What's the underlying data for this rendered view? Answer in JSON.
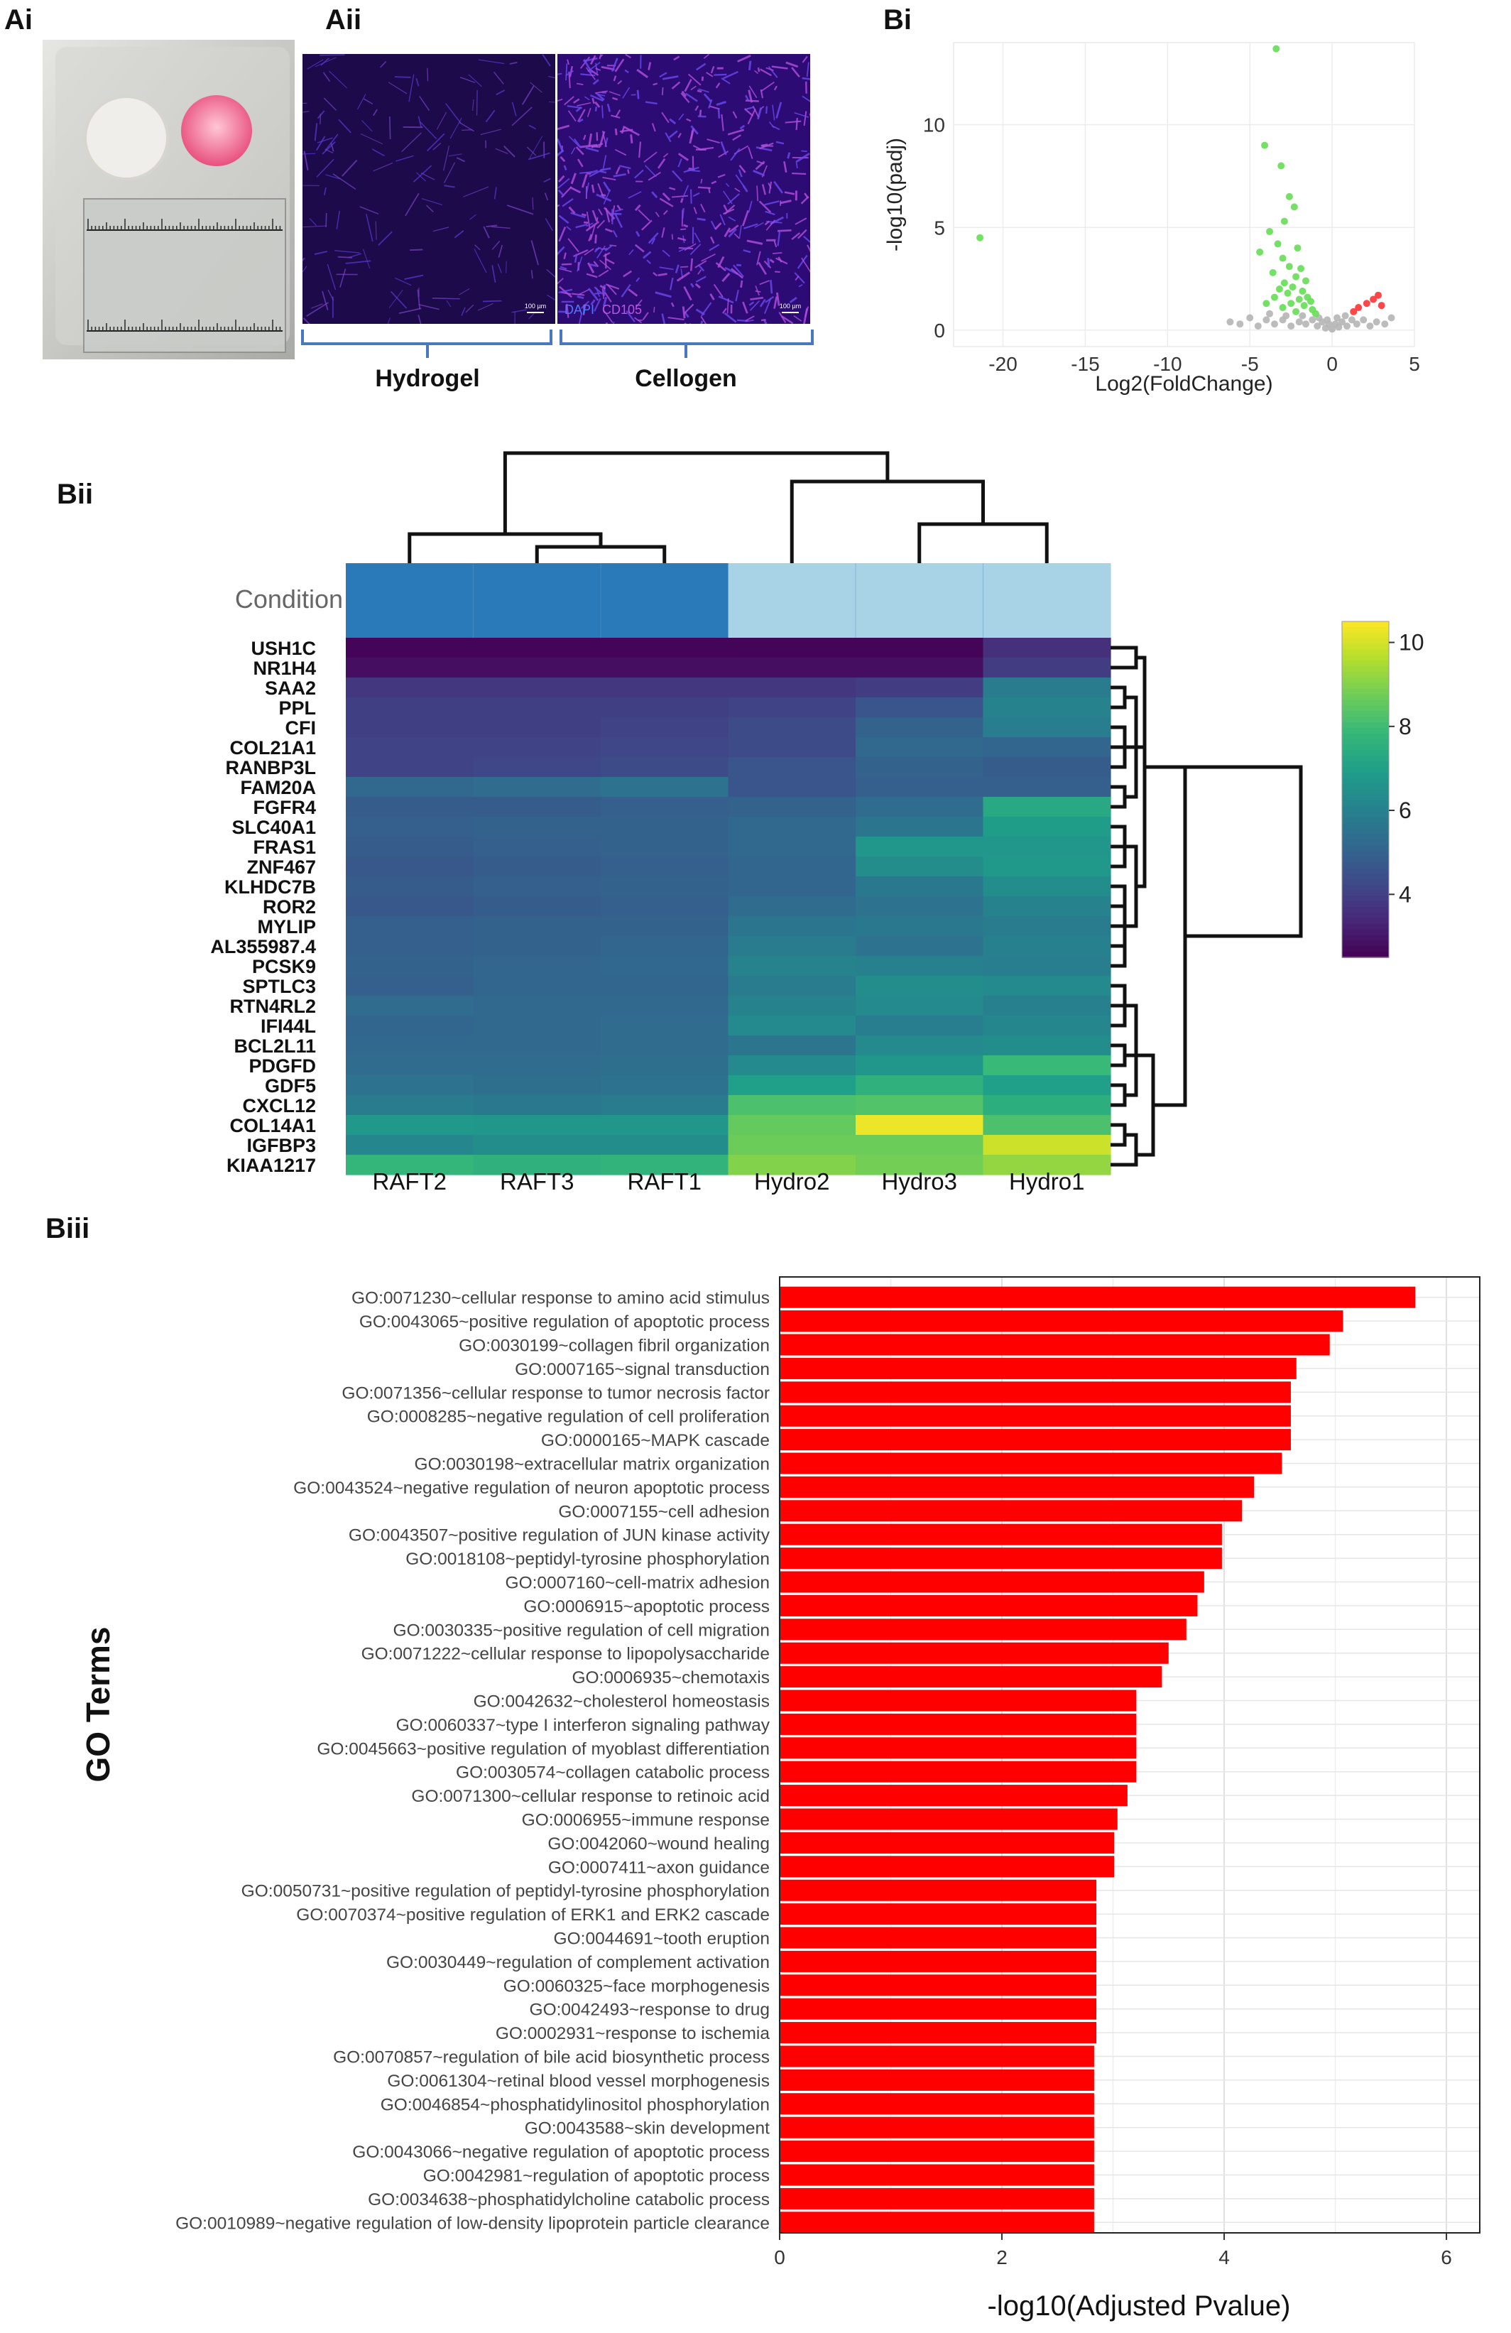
{
  "panels": {
    "ai": "Ai",
    "aii": "Aii",
    "bi": "Bi",
    "bii": "Bii",
    "biii": "Biii"
  },
  "aii": {
    "left_label": "Hydrogel",
    "right_label": "Cellogen",
    "stain_legend": {
      "dapi": "DAPI",
      "marker": "CD105"
    },
    "scale_text": "100 µm"
  },
  "colors": {
    "bar": "#ff0000",
    "volcano_up": "#ff3333",
    "volcano_down": "#66dd55",
    "volcano_ns": "#b5b5b5",
    "condition_raft": "#2a79b8",
    "condition_hydro": "#a8d3e7"
  },
  "chart_data": [
    {
      "id": "volcano",
      "type": "scatter",
      "xlabel": "Log2(FoldChange)",
      "ylabel": "-log10(padj)",
      "xlim": [
        -23,
        5
      ],
      "ylim": [
        -0.8,
        14
      ],
      "xticks": [
        "-20",
        "-15",
        "-10",
        "-5",
        "0",
        "5"
      ],
      "xtick_values": [
        -20,
        -15,
        -10,
        -5,
        0,
        5
      ],
      "yticks": [
        "0",
        "5",
        "10"
      ],
      "ytick_values": [
        0,
        5,
        10
      ],
      "grid": true,
      "series": [
        {
          "key": "up",
          "points": [
            [
              2.5,
              1.5
            ],
            [
              2.1,
              1.3
            ],
            [
              1.6,
              1.1
            ],
            [
              3.0,
              1.2
            ],
            [
              1.3,
              0.9
            ],
            [
              2.8,
              1.7
            ]
          ]
        },
        {
          "key": "down",
          "points": [
            [
              -21.4,
              4.5
            ],
            [
              -3.4,
              13.7
            ],
            [
              -4.1,
              9.0
            ],
            [
              -3.1,
              8.0
            ],
            [
              -2.6,
              6.5
            ],
            [
              -2.3,
              6.0
            ],
            [
              -2.9,
              5.3
            ],
            [
              -3.8,
              4.8
            ],
            [
              -4.4,
              3.8
            ],
            [
              -3.3,
              4.2
            ],
            [
              -2.1,
              4.0
            ],
            [
              -3.0,
              3.5
            ],
            [
              -2.6,
              3.1
            ],
            [
              -1.9,
              3.0
            ],
            [
              -3.6,
              2.8
            ],
            [
              -2.2,
              2.6
            ],
            [
              -1.6,
              2.4
            ],
            [
              -2.9,
              2.3
            ],
            [
              -2.4,
              2.1
            ],
            [
              -3.2,
              2.0
            ],
            [
              -1.8,
              1.9
            ],
            [
              -2.7,
              1.8
            ],
            [
              -1.5,
              1.6
            ],
            [
              -2.0,
              1.5
            ],
            [
              -3.5,
              1.6
            ],
            [
              -1.3,
              1.4
            ],
            [
              -2.5,
              1.3
            ],
            [
              -1.7,
              1.2
            ],
            [
              -3.0,
              1.1
            ],
            [
              -4.0,
              1.3
            ],
            [
              -1.2,
              1.0
            ],
            [
              -2.2,
              0.9
            ],
            [
              -1.0,
              0.8
            ]
          ]
        },
        {
          "key": "ns",
          "points": [
            [
              -6.2,
              0.4
            ],
            [
              -5.6,
              0.3
            ],
            [
              -5.0,
              0.6
            ],
            [
              -4.5,
              0.2
            ],
            [
              -4.0,
              0.5
            ],
            [
              -3.5,
              0.3
            ],
            [
              -3.0,
              0.5
            ],
            [
              -2.5,
              0.2
            ],
            [
              -2.0,
              0.4
            ],
            [
              -1.6,
              0.3
            ],
            [
              -1.2,
              0.5
            ],
            [
              -0.9,
              0.2
            ],
            [
              -0.6,
              0.4
            ],
            [
              -0.4,
              0.1
            ],
            [
              -0.2,
              0.3
            ],
            [
              0.0,
              0.05
            ],
            [
              0.2,
              0.3
            ],
            [
              0.4,
              0.15
            ],
            [
              0.6,
              0.4
            ],
            [
              0.9,
              0.2
            ],
            [
              1.2,
              0.5
            ],
            [
              1.5,
              0.3
            ],
            [
              1.9,
              0.5
            ],
            [
              2.3,
              0.2
            ],
            [
              2.7,
              0.4
            ],
            [
              3.2,
              0.3
            ],
            [
              3.6,
              0.6
            ],
            [
              -1.8,
              0.7
            ],
            [
              -2.8,
              0.7
            ],
            [
              -0.8,
              0.6
            ],
            [
              0.8,
              0.7
            ],
            [
              -3.8,
              0.8
            ],
            [
              -0.3,
              0.5
            ],
            [
              0.3,
              0.6
            ]
          ]
        }
      ]
    },
    {
      "id": "heatmap",
      "type": "heatmap",
      "annotation_label": "Condition",
      "columns": [
        "RAFT2",
        "RAFT3",
        "RAFT1",
        "Hydro2",
        "Hydro3",
        "Hydro1"
      ],
      "column_condition": [
        "raft",
        "raft",
        "raft",
        "hydro",
        "hydro",
        "hydro"
      ],
      "rows": [
        "USH1C",
        "NR1H4",
        "SAA2",
        "PPL",
        "CFI",
        "COL21A1",
        "RANBP3L",
        "FAM20A",
        "FGFR4",
        "SLC40A1",
        "FRAS1",
        "ZNF467",
        "KLHDC7B",
        "ROR2",
        "MYLIP",
        "AL355987.4",
        "PCSK9",
        "SPTLC3",
        "RTN4RL2",
        "IFI44L",
        "BCL2L11",
        "PDGFD",
        "GDF5",
        "CXCL12",
        "COL14A1",
        "IGFBP3",
        "KIAA1217"
      ],
      "values": [
        [
          2.6,
          2.6,
          2.6,
          2.6,
          2.6,
          3.6
        ],
        [
          2.8,
          2.8,
          2.8,
          2.8,
          2.8,
          3.9
        ],
        [
          3.8,
          3.8,
          3.8,
          3.8,
          3.9,
          5.8
        ],
        [
          4.0,
          4.0,
          4.0,
          4.1,
          4.6,
          6.1
        ],
        [
          4.0,
          4.0,
          4.1,
          4.3,
          5.0,
          5.9
        ],
        [
          4.1,
          4.1,
          4.2,
          4.3,
          5.2,
          5.1
        ],
        [
          4.1,
          4.2,
          4.3,
          4.6,
          5.0,
          4.8
        ],
        [
          5.2,
          5.3,
          5.5,
          4.6,
          4.9,
          4.9
        ],
        [
          4.8,
          4.8,
          4.9,
          5.0,
          5.3,
          7.3
        ],
        [
          4.9,
          5.0,
          5.0,
          5.2,
          5.6,
          6.9
        ],
        [
          4.8,
          4.9,
          5.0,
          5.2,
          6.7,
          6.7
        ],
        [
          4.7,
          4.8,
          4.9,
          5.1,
          6.4,
          6.8
        ],
        [
          4.8,
          4.9,
          5.0,
          5.1,
          5.7,
          6.4
        ],
        [
          4.7,
          4.8,
          4.9,
          5.3,
          5.5,
          6.1
        ],
        [
          4.9,
          5.0,
          5.0,
          5.6,
          5.7,
          5.8
        ],
        [
          4.9,
          5.0,
          5.1,
          5.8,
          5.5,
          6.0
        ],
        [
          5.0,
          5.1,
          5.2,
          6.1,
          6.0,
          5.9
        ],
        [
          4.9,
          5.1,
          5.1,
          5.8,
          6.4,
          6.3
        ],
        [
          5.3,
          5.2,
          5.2,
          6.1,
          6.3,
          6.0
        ],
        [
          5.1,
          5.2,
          5.3,
          6.3,
          5.9,
          6.2
        ],
        [
          5.2,
          5.2,
          5.3,
          5.6,
          6.3,
          6.4
        ],
        [
          5.3,
          5.3,
          5.4,
          6.3,
          6.7,
          7.9
        ],
        [
          5.5,
          5.4,
          5.5,
          7.0,
          7.6,
          7.0
        ],
        [
          5.8,
          5.7,
          5.8,
          8.2,
          8.3,
          7.5
        ],
        [
          6.8,
          6.7,
          6.7,
          8.6,
          10.3,
          8.2
        ],
        [
          6.2,
          6.4,
          6.4,
          8.7,
          8.7,
          9.9
        ],
        [
          7.8,
          7.6,
          7.7,
          9.0,
          8.8,
          9.2
        ]
      ],
      "colorbar_ticks": [
        "10",
        "8",
        "6",
        "4"
      ],
      "colorbar_tick_values": [
        10,
        8,
        6,
        4
      ],
      "color_range": [
        2.5,
        10.5
      ],
      "colormap": "viridis"
    },
    {
      "id": "go_bar",
      "type": "bar",
      "orientation": "horizontal",
      "ylabel": "GO Terms",
      "xlabel": "-log10(Adjusted Pvalue)",
      "xlim": [
        0,
        6.3
      ],
      "xticks": [
        "0",
        "2",
        "4",
        "6"
      ],
      "xtick_values": [
        0,
        2,
        4,
        6
      ],
      "grid": true,
      "categories": [
        "GO:0071230~cellular response to amino acid stimulus",
        "GO:0043065~positive regulation of apoptotic process",
        "GO:0030199~collagen fibril organization",
        "GO:0007165~signal transduction",
        "GO:0071356~cellular response to tumor necrosis factor",
        "GO:0008285~negative regulation of cell proliferation",
        "GO:0000165~MAPK cascade",
        "GO:0030198~extracellular matrix organization",
        "GO:0043524~negative regulation of neuron apoptotic process",
        "GO:0007155~cell adhesion",
        "GO:0043507~positive regulation of JUN kinase activity",
        "GO:0018108~peptidyl-tyrosine phosphorylation",
        "GO:0007160~cell-matrix adhesion",
        "GO:0006915~apoptotic process",
        "GO:0030335~positive regulation of cell migration",
        "GO:0071222~cellular response to lipopolysaccharide",
        "GO:0006935~chemotaxis",
        "GO:0042632~cholesterol homeostasis",
        "GO:0060337~type I interferon signaling pathway",
        "GO:0045663~positive regulation of myoblast differentiation",
        "GO:0030574~collagen catabolic process",
        "GO:0071300~cellular response to retinoic acid",
        "GO:0006955~immune response",
        "GO:0042060~wound healing",
        "GO:0007411~axon guidance",
        "GO:0050731~positive regulation of peptidyl-tyrosine phosphorylation",
        "GO:0070374~positive regulation of ERK1 and ERK2 cascade",
        "GO:0044691~tooth eruption",
        "GO:0030449~regulation of complement activation",
        "GO:0060325~face morphogenesis",
        "GO:0042493~response to drug",
        "GO:0002931~response to ischemia",
        "GO:0070857~regulation of bile acid biosynthetic process",
        "GO:0061304~retinal blood vessel morphogenesis",
        "GO:0046854~phosphatidylinositol phosphorylation",
        "GO:0043588~skin development",
        "GO:0043066~negative regulation of apoptotic process",
        "GO:0042981~regulation of apoptotic process",
        "GO:0034638~phosphatidylcholine catabolic process",
        "GO:0010989~negative regulation of low-density lipoprotein particle clearance"
      ],
      "values": [
        5.72,
        5.07,
        4.95,
        4.65,
        4.6,
        4.6,
        4.6,
        4.52,
        4.27,
        4.16,
        3.98,
        3.98,
        3.82,
        3.76,
        3.66,
        3.5,
        3.44,
        3.21,
        3.21,
        3.21,
        3.21,
        3.13,
        3.04,
        3.01,
        3.01,
        2.85,
        2.85,
        2.85,
        2.85,
        2.85,
        2.85,
        2.85,
        2.83,
        2.83,
        2.83,
        2.83,
        2.83,
        2.83,
        2.83,
        2.83
      ]
    }
  ]
}
